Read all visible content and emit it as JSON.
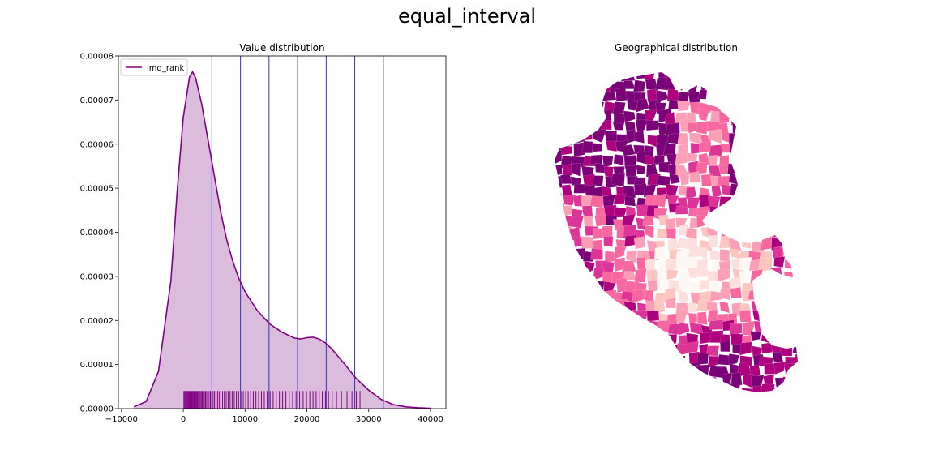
{
  "figure": {
    "suptitle": "equal_interval"
  },
  "chart_data": [
    {
      "type": "area",
      "title": "Value distribution",
      "xlabel": "",
      "ylabel": "",
      "xlim": [
        -10500,
        42500
      ],
      "ylim": [
        0,
        8e-05
      ],
      "xticks": [
        -10000,
        0,
        10000,
        20000,
        30000,
        40000
      ],
      "xtick_labels": [
        "−10000",
        "0",
        "10000",
        "20000",
        "30000",
        "40000"
      ],
      "yticks": [
        0,
        1e-05,
        2e-05,
        3e-05,
        4e-05,
        5e-05,
        6e-05,
        7e-05,
        8e-05
      ],
      "ytick_labels": [
        "0.00000",
        "0.00001",
        "0.00002",
        "0.00003",
        "0.00004",
        "0.00005",
        "0.00006",
        "0.00007",
        "0.00008"
      ],
      "grid": false,
      "legend": {
        "position": "top-left",
        "entries": [
          "imd_rank"
        ]
      },
      "series": [
        {
          "name": "imd_rank",
          "color": "#800080",
          "fill_color": "#dcbcdc",
          "x": [
            -8000,
            -6000,
            -4000,
            -2000,
            -1000,
            0,
            1000,
            1500,
            2000,
            3000,
            4000,
            5000,
            6000,
            7000,
            8000,
            9000,
            10000,
            12000,
            14000,
            16000,
            18000,
            19000,
            20000,
            21000,
            22000,
            23000,
            24000,
            26000,
            28000,
            30000,
            32000,
            34000,
            36000,
            38000,
            40000
          ],
          "y": [
            4e-07,
            1.6e-06,
            8.5e-06,
            2.9e-05,
            4.9e-05,
            6.6e-05,
            7.52e-05,
            7.64e-05,
            7.5e-05,
            6.9e-05,
            6.1e-05,
            5.3e-05,
            4.5e-05,
            3.85e-05,
            3.35e-05,
            2.95e-05,
            2.65e-05,
            2.22e-05,
            1.92e-05,
            1.73e-05,
            1.6e-05,
            1.58e-05,
            1.61e-05,
            1.62e-05,
            1.58e-05,
            1.49e-05,
            1.36e-05,
            1.03e-05,
            6.8e-06,
            4.2e-06,
            2.1e-06,
            9e-07,
            4e-07,
            2e-07,
            1e-07
          ]
        }
      ],
      "class_breaks": {
        "color": "#3333cc",
        "values": [
          4630,
          9260,
          13880,
          18500,
          23130,
          27750,
          32380
        ]
      },
      "rug": {
        "color": "#800080",
        "height": 4e-06,
        "x": [
          100,
          230,
          360,
          480,
          610,
          740,
          860,
          990,
          1110,
          1240,
          1370,
          1490,
          1620,
          1760,
          1880,
          2010,
          2150,
          2300,
          2450,
          2600,
          2760,
          2920,
          3080,
          3250,
          3420,
          3600,
          3790,
          3980,
          4180,
          4390,
          4610,
          4830,
          5060,
          5300,
          5550,
          5810,
          6080,
          6360,
          6650,
          6950,
          7260,
          7580,
          7910,
          8250,
          8600,
          8960,
          9330,
          9710,
          10100,
          10500,
          10910,
          11330,
          11760,
          12200,
          12650,
          13110,
          13580,
          14060,
          14550,
          15050,
          15560,
          16080,
          16610,
          17150,
          17700,
          18260,
          18830,
          19400,
          19950,
          20480,
          21000,
          21500,
          22000,
          22500,
          23000,
          23500,
          24100,
          24800,
          25600,
          26500,
          27300,
          28000,
          28600
        ]
      }
    },
    {
      "type": "map",
      "title": "Geographical distribution",
      "palette": [
        "#fff7f3",
        "#fde0dd",
        "#fcc5c0",
        "#fa9fb5",
        "#f768a1",
        "#dd3497",
        "#ae017e",
        "#7a0177"
      ]
    }
  ]
}
